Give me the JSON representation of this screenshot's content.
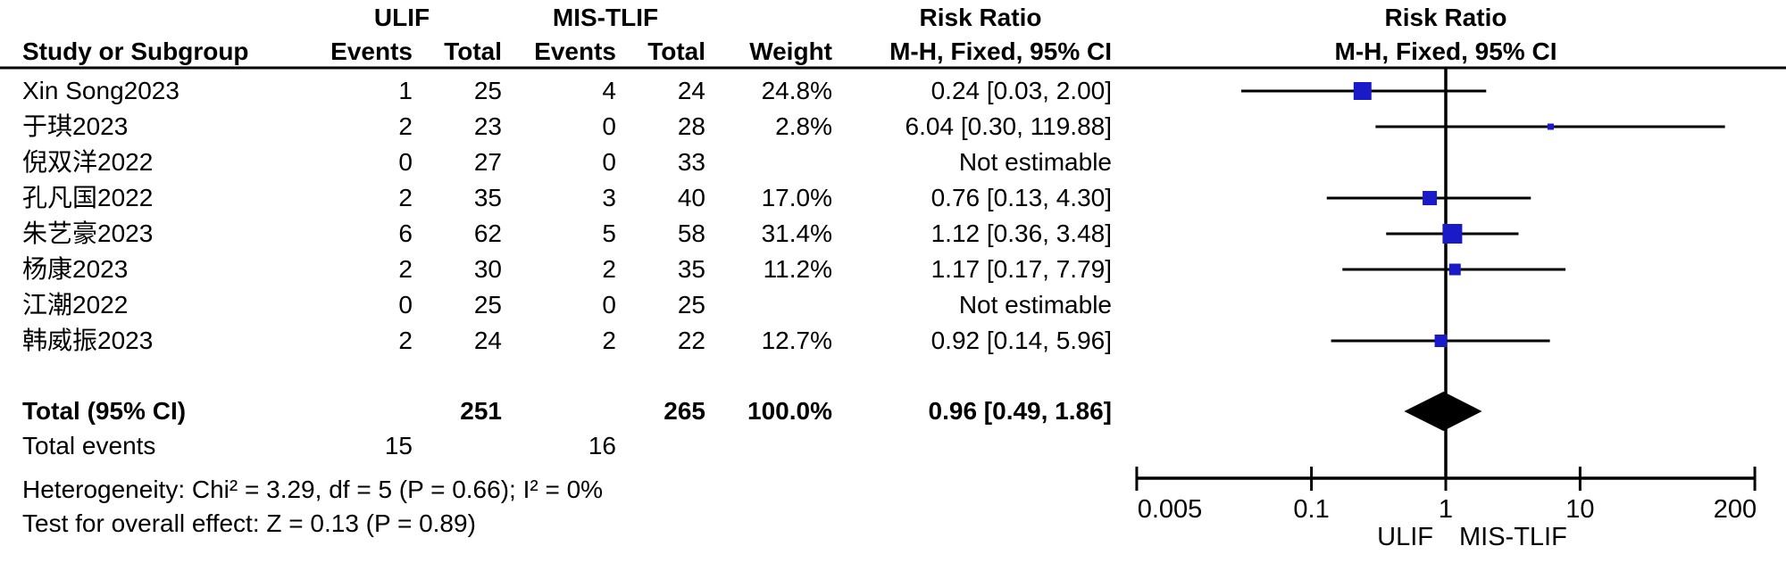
{
  "header": {
    "study": "Study or Subgroup",
    "group_left": "ULIF",
    "group_right": "MIS-TLIF",
    "events": "Events",
    "total": "Total",
    "weight": "Weight",
    "risk_ratio": "Risk Ratio",
    "method": "M-H, Fixed, 95% CI"
  },
  "chart_data": {
    "type": "forest",
    "effect_measure": "Risk Ratio",
    "model": "M-H, Fixed, 95% CI",
    "scale": "log",
    "axis_ticks": [
      0.005,
      0.1,
      1,
      10,
      200
    ],
    "axis_tick_labels": [
      "0.005",
      "0.1",
      "1",
      "10",
      "200"
    ],
    "favours_left": "ULIF",
    "favours_right": "MIS-TLIF",
    "marker_color": "#1A1AC8",
    "diamond_color": "#000000",
    "studies": [
      {
        "name": "Xin Song2023",
        "ulif_events": "1",
        "ulif_total": "25",
        "mis_events": "4",
        "mis_total": "24",
        "weight": "24.8%",
        "weight_pct": 24.8,
        "ci_label": "0.24 [0.03, 2.00]",
        "rr": 0.24,
        "low": 0.03,
        "high": 2.0,
        "estimable": true
      },
      {
        "name": "于琪2023",
        "ulif_events": "2",
        "ulif_total": "23",
        "mis_events": "0",
        "mis_total": "28",
        "weight": "2.8%",
        "weight_pct": 2.8,
        "ci_label": "6.04 [0.30, 119.88]",
        "rr": 6.04,
        "low": 0.3,
        "high": 119.88,
        "estimable": true
      },
      {
        "name": "倪双洋2022",
        "ulif_events": "0",
        "ulif_total": "27",
        "mis_events": "0",
        "mis_total": "33",
        "weight": "",
        "weight_pct": 0,
        "ci_label": "Not estimable",
        "estimable": false
      },
      {
        "name": "孔凡国2022",
        "ulif_events": "2",
        "ulif_total": "35",
        "mis_events": "3",
        "mis_total": "40",
        "weight": "17.0%",
        "weight_pct": 17.0,
        "ci_label": "0.76 [0.13, 4.30]",
        "rr": 0.76,
        "low": 0.13,
        "high": 4.3,
        "estimable": true
      },
      {
        "name": "朱艺豪2023",
        "ulif_events": "6",
        "ulif_total": "62",
        "mis_events": "5",
        "mis_total": "58",
        "weight": "31.4%",
        "weight_pct": 31.4,
        "ci_label": "1.12 [0.36, 3.48]",
        "rr": 1.12,
        "low": 0.36,
        "high": 3.48,
        "estimable": true
      },
      {
        "name": "杨康2023",
        "ulif_events": "2",
        "ulif_total": "30",
        "mis_events": "2",
        "mis_total": "35",
        "weight": "11.2%",
        "weight_pct": 11.2,
        "ci_label": "1.17 [0.17, 7.79]",
        "rr": 1.17,
        "low": 0.17,
        "high": 7.79,
        "estimable": true
      },
      {
        "name": "江潮2022",
        "ulif_events": "0",
        "ulif_total": "25",
        "mis_events": "0",
        "mis_total": "25",
        "weight": "",
        "weight_pct": 0,
        "ci_label": "Not estimable",
        "estimable": false
      },
      {
        "name": "韩威振2023",
        "ulif_events": "2",
        "ulif_total": "24",
        "mis_events": "2",
        "mis_total": "22",
        "weight": "12.7%",
        "weight_pct": 12.7,
        "ci_label": "0.92 [0.14, 5.96]",
        "rr": 0.92,
        "low": 0.14,
        "high": 5.96,
        "estimable": true
      }
    ],
    "total": {
      "label": "Total (95% CI)",
      "ulif_total": "251",
      "mis_total": "265",
      "weight": "100.0%",
      "ci_label": "0.96 [0.49, 1.86]",
      "rr": 0.96,
      "low": 0.49,
      "high": 1.86
    },
    "total_events": {
      "label": "Total events",
      "ulif": "15",
      "mis": "16"
    }
  },
  "footer": {
    "heterogeneity": "Heterogeneity: Chi² = 3.29, df = 5 (P = 0.66); I² = 0%",
    "overall_effect": "Test for overall effect: Z = 0.13 (P = 0.89)"
  }
}
